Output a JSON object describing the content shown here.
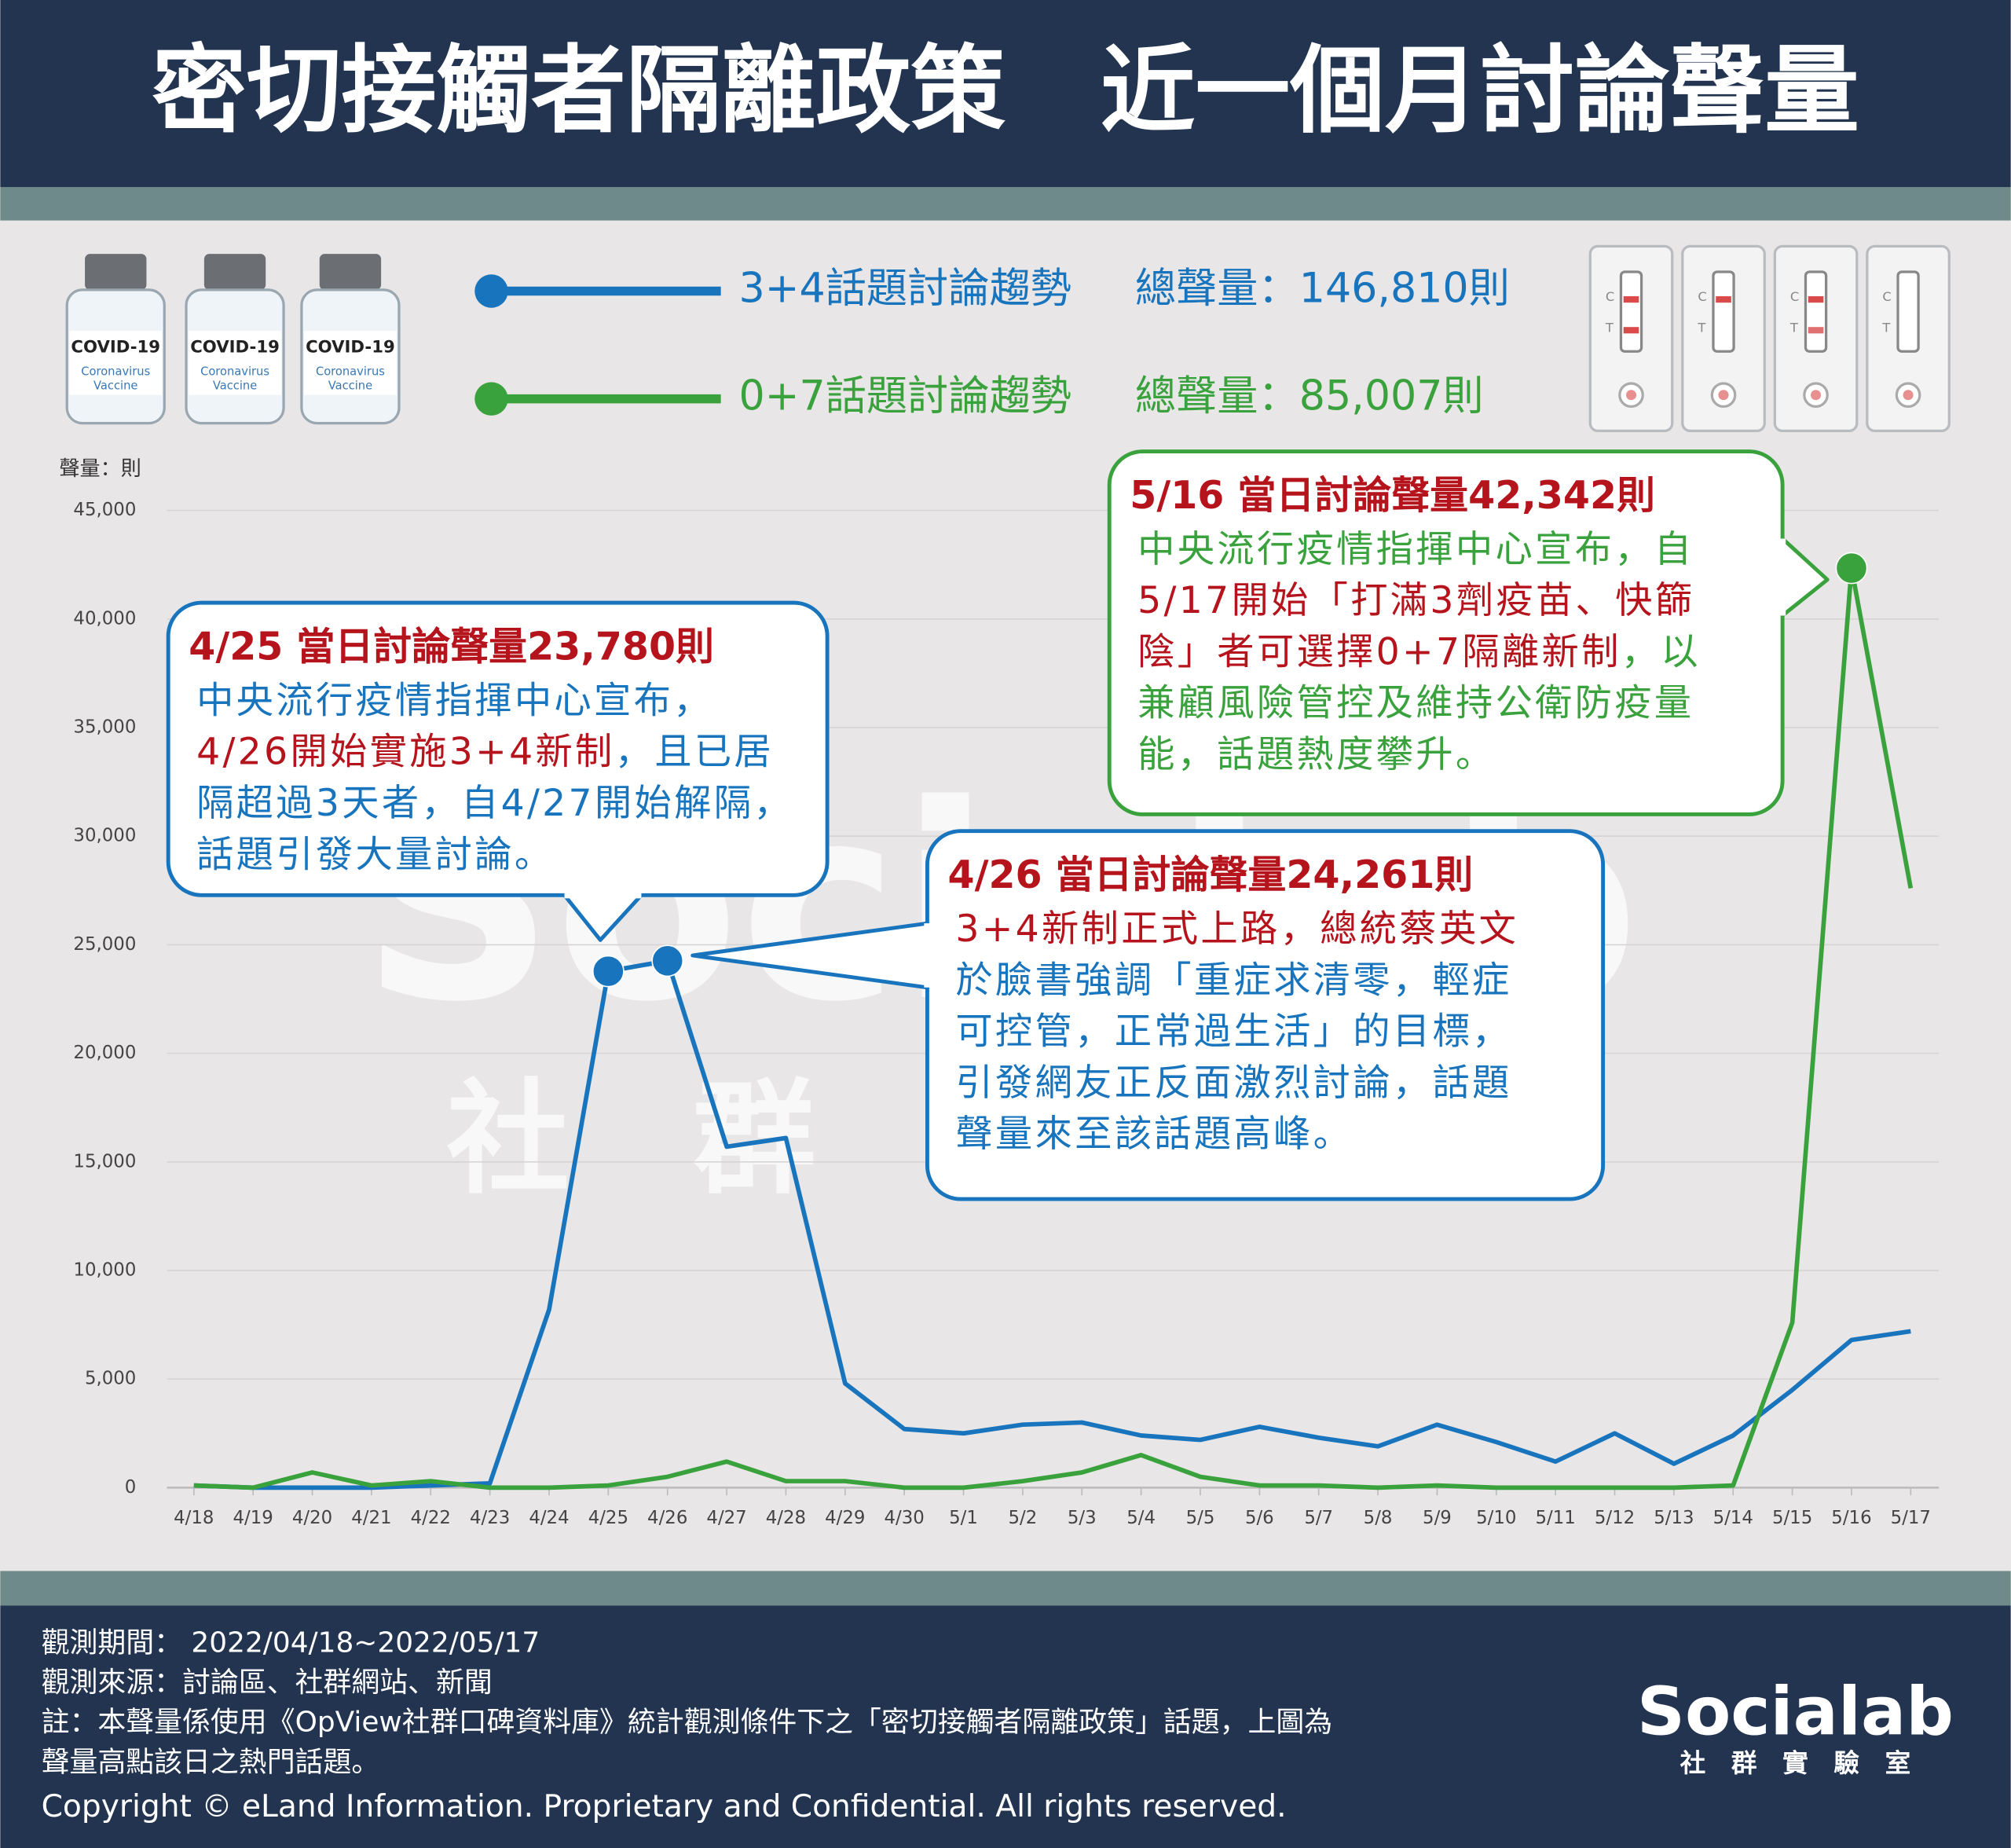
{
  "header": {
    "title": "密切接觸者隔離政策　近一個月討論聲量"
  },
  "legend_totals": [
    "總聲量：146,810則",
    "總聲量：85,007則"
  ],
  "icons": {
    "vial_label": "COVID-19",
    "vial_sub": [
      "Coronavirus",
      "Vaccine"
    ],
    "kit_c": "C",
    "kit_t": "T"
  },
  "watermark": {
    "brand": "Socialab",
    "sub": "社　群　實　驗　室"
  },
  "chart_data": {
    "type": "line",
    "y_label": "聲量：則",
    "categories": [
      "4/18",
      "4/19",
      "4/20",
      "4/21",
      "4/22",
      "4/23",
      "4/24",
      "4/25",
      "4/26",
      "4/27",
      "4/28",
      "4/29",
      "4/30",
      "5/1",
      "5/2",
      "5/3",
      "5/4",
      "5/5",
      "5/6",
      "5/7",
      "5/8",
      "5/9",
      "5/10",
      "5/11",
      "5/12",
      "5/13",
      "5/14",
      "5/15",
      "5/16",
      "5/17"
    ],
    "series": [
      {
        "name": "3+4話題討論趨勢",
        "color": "#1874bd",
        "values": [
          100,
          0,
          0,
          0,
          100,
          200,
          8200,
          23780,
          24261,
          15700,
          16100,
          4800,
          2700,
          2500,
          2900,
          3000,
          2400,
          2200,
          2800,
          2300,
          1900,
          2900,
          2100,
          1200,
          2500,
          1100,
          2400,
          4500,
          6800,
          7200
        ]
      },
      {
        "name": "0+7話題討論趨勢",
        "color": "#3aa23d",
        "values": [
          100,
          0,
          700,
          100,
          300,
          0,
          0,
          100,
          500,
          1200,
          300,
          300,
          0,
          0,
          300,
          700,
          1500,
          500,
          100,
          100,
          0,
          100,
          0,
          0,
          0,
          0,
          100,
          7600,
          42342,
          27600
        ]
      }
    ],
    "ylim": [
      0,
      45000
    ],
    "yticks": [
      0,
      {
        "value": 5000,
        "label": "5,000"
      },
      {
        "value": 10000,
        "label": "10,000"
      },
      {
        "value": 15000,
        "label": "15,000"
      },
      {
        "value": 20000,
        "label": "20,000"
      },
      {
        "value": 25000,
        "label": "25,000"
      },
      {
        "value": 30000,
        "label": "30,000"
      },
      {
        "value": 35000,
        "label": "35,000"
      },
      {
        "value": 40000,
        "label": "40,000"
      },
      {
        "value": 45000,
        "label": "45,000"
      }
    ],
    "grid": true,
    "annotations": [
      {
        "heading": "4/25 當日討論聲量23,780則",
        "lines": [
          [
            {
              "text": "中央流行疫情指揮中心宣布，",
              "color": "#1874bd"
            }
          ],
          [
            {
              "text": "4/26開始實施3+4新制",
              "color": "#b5141c"
            },
            {
              "text": "，且已居",
              "color": "#1874bd"
            }
          ],
          [
            {
              "text": "隔超過3天者，自4/27開始解隔，",
              "color": "#1874bd"
            }
          ],
          [
            {
              "text": "話題引發大量討論。",
              "color": "#1874bd"
            }
          ]
        ]
      },
      {
        "heading": "4/26 當日討論聲量24,261則",
        "lines": [
          [
            {
              "text": "3+4新制正式上路，總統蔡英文",
              "color": "#b5141c"
            }
          ],
          [
            {
              "text": "於臉書強調「重症求清零，輕症",
              "color": "#1874bd"
            }
          ],
          [
            {
              "text": "可控管，正常過生活」的目標，",
              "color": "#1874bd"
            }
          ],
          [
            {
              "text": "引發網友正反面激烈討論，話題",
              "color": "#1874bd"
            }
          ],
          [
            {
              "text": "聲量來至該話題高峰。",
              "color": "#1874bd"
            }
          ]
        ]
      },
      {
        "heading": "5/16 當日討論聲量42,342則",
        "lines": [
          [
            {
              "text": "中央流行疫情指揮中心宣布，自",
              "color": "#3aa23d"
            }
          ],
          [
            {
              "text": "5/17開始「打滿3劑疫苗、快篩",
              "color": "#b5141c"
            }
          ],
          [
            {
              "text": "陰」者可選擇0+7隔離新制",
              "color": "#b5141c"
            },
            {
              "text": "，以",
              "color": "#3aa23d"
            }
          ],
          [
            {
              "text": "兼顧風險管控及維持公衛防疫量",
              "color": "#3aa23d"
            }
          ],
          [
            {
              "text": "能，話題熱度攀升。",
              "color": "#3aa23d"
            }
          ]
        ]
      }
    ]
  },
  "footer": {
    "lines": [
      "觀測期間： 2022/04/18~2022/05/17",
      "觀測來源：討論區、社群網站、新聞",
      "註：本聲量係使用《OpView社群口碑資料庫》統計觀測條件下之「密切接觸者隔離政策」話題，上圖為",
      "聲量高點該日之熱門話題。"
    ],
    "copyright": "Copyright © eLand Information. Proprietary and Confidential. All rights reserved.",
    "logo": "Socialab",
    "logo_sub": "社　群　實　驗　室"
  }
}
